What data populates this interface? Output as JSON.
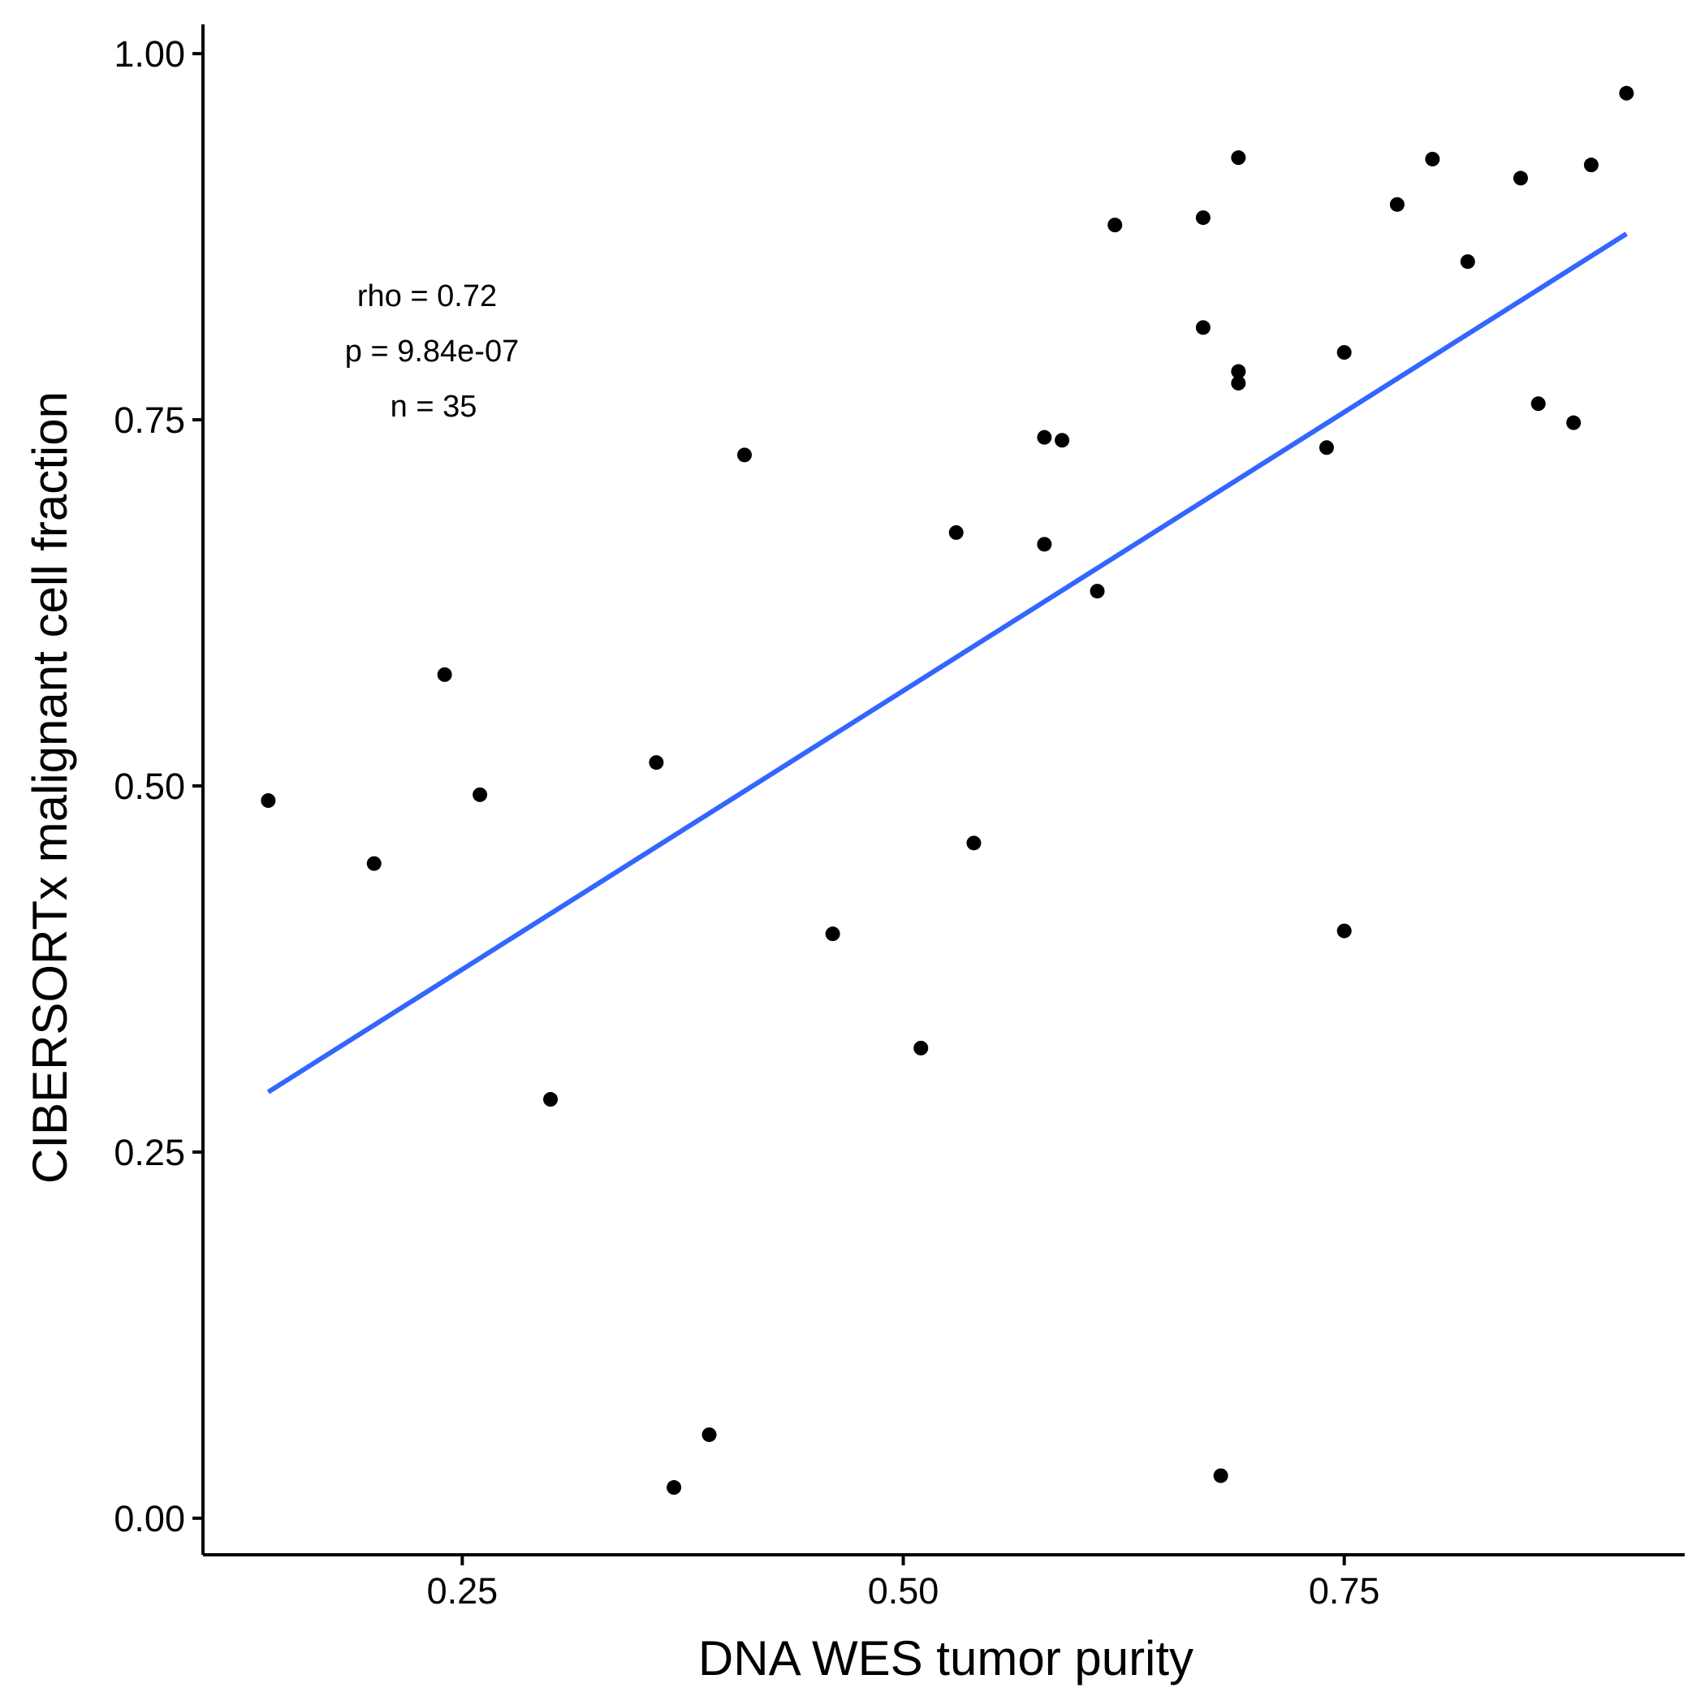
{
  "chart_data": {
    "type": "scatter",
    "xlabel": "DNA WES tumor purity",
    "ylabel": "CIBERSORTx malignant cell fraction",
    "xlim": [
      0.103,
      0.943
    ],
    "ylim": [
      -0.025,
      1.02
    ],
    "x_ticks": [
      {
        "value": 0.25,
        "label": "0.25"
      },
      {
        "value": 0.5,
        "label": "0.50"
      },
      {
        "value": 0.75,
        "label": "0.75"
      }
    ],
    "y_ticks": [
      {
        "value": 0.0,
        "label": "0.00"
      },
      {
        "value": 0.25,
        "label": "0.25"
      },
      {
        "value": 0.5,
        "label": "0.50"
      },
      {
        "value": 0.75,
        "label": "0.75"
      },
      {
        "value": 1.0,
        "label": "1.00"
      }
    ],
    "grid": false,
    "legend": "none",
    "colors": {
      "points": "#000000",
      "fit_line": "#3366FF",
      "axis": "#000000"
    },
    "points": [
      {
        "x": 0.14,
        "y": 0.49
      },
      {
        "x": 0.2,
        "y": 0.447
      },
      {
        "x": 0.24,
        "y": 0.576
      },
      {
        "x": 0.26,
        "y": 0.494
      },
      {
        "x": 0.3,
        "y": 0.286
      },
      {
        "x": 0.36,
        "y": 0.516
      },
      {
        "x": 0.37,
        "y": 0.021
      },
      {
        "x": 0.39,
        "y": 0.057
      },
      {
        "x": 0.41,
        "y": 0.726
      },
      {
        "x": 0.46,
        "y": 0.399
      },
      {
        "x": 0.51,
        "y": 0.321
      },
      {
        "x": 0.53,
        "y": 0.673
      },
      {
        "x": 0.54,
        "y": 0.461
      },
      {
        "x": 0.58,
        "y": 0.665
      },
      {
        "x": 0.58,
        "y": 0.738
      },
      {
        "x": 0.59,
        "y": 0.736
      },
      {
        "x": 0.61,
        "y": 0.633
      },
      {
        "x": 0.62,
        "y": 0.883
      },
      {
        "x": 0.67,
        "y": 0.888
      },
      {
        "x": 0.67,
        "y": 0.813
      },
      {
        "x": 0.68,
        "y": 0.029
      },
      {
        "x": 0.69,
        "y": 0.929
      },
      {
        "x": 0.69,
        "y": 0.783
      },
      {
        "x": 0.69,
        "y": 0.775
      },
      {
        "x": 0.74,
        "y": 0.731
      },
      {
        "x": 0.75,
        "y": 0.796
      },
      {
        "x": 0.75,
        "y": 0.401
      },
      {
        "x": 0.78,
        "y": 0.897
      },
      {
        "x": 0.8,
        "y": 0.928
      },
      {
        "x": 0.82,
        "y": 0.858
      },
      {
        "x": 0.85,
        "y": 0.915
      },
      {
        "x": 0.86,
        "y": 0.761
      },
      {
        "x": 0.88,
        "y": 0.748
      },
      {
        "x": 0.89,
        "y": 0.924
      },
      {
        "x": 0.91,
        "y": 0.973
      }
    ],
    "fit_line": {
      "x": [
        0.14,
        0.91
      ],
      "y": [
        0.291,
        0.877
      ]
    },
    "annotations": {
      "rho": "rho = 0.72",
      "p": "p = 9.84e-07",
      "n": "n = 35"
    }
  }
}
